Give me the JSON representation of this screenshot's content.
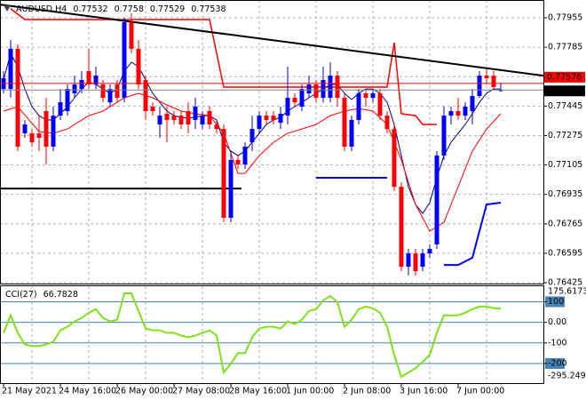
{
  "chart_data": {
    "type": "candlestick",
    "symbol": "AUDUSD,H4",
    "categories": [
      "21 May 2021",
      null,
      null,
      null,
      null,
      null,
      null,
      null,
      "24 May 16:00",
      null,
      null,
      null,
      null,
      null,
      null,
      null,
      "26 May 00:00",
      null,
      null,
      null,
      null,
      null,
      null,
      null,
      "27 May 08:00",
      null,
      null,
      null,
      null,
      null,
      null,
      null,
      "28 May 16:00",
      null,
      null,
      null,
      null,
      null,
      null,
      null,
      "1 Jun 00:00",
      null,
      null,
      null,
      null,
      null,
      null,
      null,
      "2 Jun 08:00",
      null,
      null,
      null,
      null,
      null,
      null,
      null,
      "3 Jun 16:00",
      null,
      null,
      null,
      null,
      null,
      null,
      null,
      "7 Jun 00:00",
      null,
      null,
      null,
      null,
      null,
      null
    ],
    "open": [
      0.77544,
      0.77544,
      0.77776,
      0.77288,
      0.77288,
      0.77288,
      0.77416,
      0.77211,
      0.7739,
      0.77416,
      0.77519,
      0.77544,
      0.77647,
      0.7757,
      0.7757,
      0.77467,
      0.7757,
      0.77493,
      0.7793,
      0.77776,
      0.77596,
      0.77442,
      0.77339,
      0.77401,
      0.7739,
      0.7739,
      0.77416,
      0.77365,
      0.77339,
      0.77416,
      0.77339,
      0.77313,
      0.768,
      0.77134,
      0.77108,
      0.77236,
      0.77313,
      0.7739,
      0.7739,
      0.77349,
      0.7739,
      0.77493,
      0.77442,
      0.77519,
      0.7757,
      0.77493,
      0.77493,
      0.77621,
      0.77493,
      0.77211,
      0.77365,
      0.77519,
      0.77493,
      0.77519,
      0.7739,
      0.77313,
      0.76979,
      0.76517,
      0.76594,
      0.76517,
      0.76594,
      0.76646,
      0.77159,
      0.7739,
      0.77416,
      0.7739,
      0.77416,
      0.77503,
      0.77621,
      0.77621,
      0.77532
    ],
    "high": [
      0.77647,
      0.77827,
      0.77801,
      0.77365,
      0.77313,
      0.7739,
      0.77493,
      0.77442,
      0.77544,
      0.7757,
      0.77621,
      0.77647,
      0.77776,
      0.77673,
      0.77596,
      0.7757,
      0.77596,
      0.77955,
      0.77981,
      0.77827,
      0.77621,
      0.77467,
      0.77442,
      0.77442,
      0.77416,
      0.77416,
      0.77467,
      0.77493,
      0.77416,
      0.77442,
      0.77365,
      0.77339,
      0.77185,
      0.77159,
      0.77236,
      0.7739,
      0.77416,
      0.77416,
      0.77416,
      0.77442,
      0.77673,
      0.77519,
      0.7757,
      0.77621,
      0.77596,
      0.77673,
      0.77698,
      0.77647,
      0.77519,
      0.7739,
      0.77544,
      0.77544,
      0.77544,
      0.77544,
      0.77416,
      0.77339,
      0.77005,
      0.7662,
      0.7662,
      0.7662,
      0.76646,
      0.77185,
      0.77442,
      0.77442,
      0.77493,
      0.77467,
      0.77544,
      0.77647,
      0.77657,
      0.77647,
      0.7758
    ],
    "low": [
      0.77519,
      0.77493,
      0.77185,
      0.77262,
      0.77211,
      0.77185,
      0.77108,
      0.77185,
      0.77365,
      0.7739,
      0.77493,
      0.77519,
      0.77544,
      0.77544,
      0.77467,
      0.77442,
      0.77467,
      0.77467,
      0.7775,
      0.77544,
      0.77365,
      0.7739,
      0.77262,
      0.77236,
      0.77339,
      0.77313,
      0.77288,
      0.77313,
      0.77313,
      0.77313,
      0.77288,
      0.76774,
      0.76774,
      0.77082,
      0.77082,
      0.77185,
      0.77288,
      0.77339,
      0.77339,
      0.77313,
      0.77339,
      0.77442,
      0.77416,
      0.77493,
      0.77467,
      0.77467,
      0.77467,
      0.77442,
      0.77185,
      0.77185,
      0.77339,
      0.77442,
      0.77467,
      0.77365,
      0.77288,
      0.76954,
      0.76492,
      0.76466,
      0.76466,
      0.76492,
      0.76569,
      0.7662,
      0.77134,
      0.77339,
      0.77365,
      0.77365,
      0.77339,
      0.77493,
      0.7757,
      0.77544,
      0.77529
    ],
    "close": [
      0.77606,
      0.77776,
      0.77211,
      0.77339,
      0.77236,
      0.77262,
      0.77211,
      0.7739,
      0.77467,
      0.77544,
      0.7757,
      0.77596,
      0.7757,
      0.77621,
      0.77493,
      0.77544,
      0.77493,
      0.7793,
      0.77776,
      0.7757,
      0.77416,
      0.77416,
      0.7739,
      0.77365,
      0.77365,
      0.77339,
      0.77339,
      0.77442,
      0.7739,
      0.77339,
      0.77313,
      0.768,
      0.77134,
      0.77108,
      0.77211,
      0.77313,
      0.7739,
      0.77365,
      0.77365,
      0.77401,
      0.77493,
      0.77467,
      0.77544,
      0.7757,
      0.77493,
      0.77596,
      0.77621,
      0.77493,
      0.77211,
      0.77365,
      0.77519,
      0.77493,
      0.77519,
      0.7739,
      0.77313,
      0.76979,
      0.76517,
      0.76594,
      0.76492,
      0.76594,
      0.7662,
      0.77159,
      0.7739,
      0.77416,
      0.7739,
      0.77442,
      0.77503,
      0.77621,
      0.77606,
      0.77555,
      0.77538
    ],
    "up_color": "#0000ff",
    "down_color": "#ff0000",
    "ylim": [
      0.76425,
      0.78058
    ],
    "yticks": [
      0.77955,
      0.77785,
      0.77615,
      0.77445,
      0.77275,
      0.77105,
      0.76935,
      0.76765,
      0.76595,
      0.76425
    ],
    "grid": true,
    "overlays": [
      {
        "color": "#000080",
        "width": 1,
        "values": [
          0.77596,
          0.7775,
          0.77673,
          0.77544,
          0.77442,
          0.7739,
          0.77365,
          0.77365,
          0.77401,
          0.77442,
          0.77493,
          0.77544,
          0.77585,
          0.7757,
          0.77544,
          0.77519,
          0.77544,
          0.77647,
          0.77698,
          0.77673,
          0.77596,
          0.77519,
          0.77467,
          0.77416,
          0.7739,
          0.7738,
          0.77375,
          0.7738,
          0.7739,
          0.7739,
          0.77365,
          0.77236,
          0.77185,
          0.77159,
          0.77185,
          0.77236,
          0.77288,
          0.77339,
          0.77365,
          0.7738,
          0.77416,
          0.77442,
          0.77467,
          0.77493,
          0.77519,
          0.77544,
          0.7757,
          0.7757,
          0.77519,
          0.77483,
          0.77519,
          0.77544,
          0.77544,
          0.77519,
          0.77467,
          0.77339,
          0.77159,
          0.76979,
          0.76877,
          0.76825,
          0.76887,
          0.77031,
          0.77159,
          0.77236,
          0.77288,
          0.77339,
          0.77401,
          0.77467,
          0.77519,
          0.77544,
          0.77544
        ]
      },
      {
        "color": "#ff0000",
        "width": 1,
        "x": [
          0,
          2,
          5,
          7,
          9,
          12,
          14,
          17,
          19,
          21,
          23,
          25,
          27,
          29,
          31,
          33,
          34,
          36,
          38,
          40,
          42,
          44,
          46,
          48,
          50,
          52,
          54,
          56,
          58,
          60,
          62,
          64,
          66,
          68,
          70
        ],
        "values": [
          0.77416,
          0.77442,
          0.77298,
          0.77288,
          0.77313,
          0.7739,
          0.77416,
          0.77493,
          0.77519,
          0.77493,
          0.77452,
          0.77416,
          0.77401,
          0.7739,
          0.77288,
          0.77056,
          0.77056,
          0.77159,
          0.77236,
          0.77288,
          0.77313,
          0.77339,
          0.7739,
          0.77416,
          0.77431,
          0.77416,
          0.77339,
          0.77134,
          0.76877,
          0.76723,
          0.76774,
          0.76979,
          0.77185,
          0.77313,
          0.77401
        ]
      },
      {
        "color": "#ff0000",
        "width": 1.5,
        "x": [
          1,
          3,
          29,
          31,
          54,
          55,
          56,
          58,
          59,
          61
        ],
        "values": [
          0.78007,
          0.77945,
          0.77945,
          0.77555,
          0.77555,
          0.77811,
          0.77401,
          0.7739,
          0.77339,
          0.77339
        ]
      },
      {
        "color": "#0000ff",
        "width": 2,
        "x": [
          44,
          54,
          55,
          62,
          64,
          66,
          68,
          70
        ],
        "values": [
          0.77031,
          0.77031,
          null,
          0.76527,
          0.76527,
          0.76569,
          0.76877,
          0.76887
        ]
      },
      {
        "color": "#000000",
        "width": 2,
        "x": [
          -0.5,
          76
        ],
        "values": [
          0.78032,
          0.77621
        ]
      },
      {
        "color": "#000000",
        "width": 2,
        "x": [
          -0.5,
          33.5
        ],
        "values": [
          0.76969,
          0.76969
        ]
      }
    ],
    "price_lines": [
      {
        "value": 0.77576,
        "color": "#ff0000"
      },
      {
        "value": 0.77538,
        "color": "#808080"
      }
    ],
    "cci": {
      "name": "CCI(27)",
      "color": "#7fe01e",
      "values": [
        -51.3,
        34.2,
        -51.3,
        -106.8,
        -115.4,
        -115.4,
        -106.8,
        -94.0,
        -38.5,
        -21.4,
        4.3,
        21.4,
        47.0,
        64.1,
        21.4,
        4.3,
        12.8,
        141.0,
        141.0,
        55.6,
        -29.9,
        -38.5,
        -38.5,
        -51.3,
        -51.3,
        -64.1,
        -72.6,
        -64.1,
        -51.3,
        -38.5,
        -64.1,
        -243.6,
        -200.9,
        -149.6,
        -149.6,
        -72.6,
        -29.9,
        -21.4,
        -21.4,
        -29.9,
        4.3,
        -8.5,
        12.8,
        55.6,
        64.1,
        106.8,
        128.2,
        98.3,
        -21.4,
        12.8,
        64.1,
        76.9,
        68.4,
        47.0,
        -21.4,
        -158.1,
        -265.0,
        -243.6,
        -222.2,
        -192.3,
        -158.1,
        -51.3,
        34.2,
        34.2,
        34.2,
        47.0,
        64.1,
        76.9,
        76.9,
        68.4,
        66.7828
      ],
      "ylim": [
        -295.2492,
        175.6173
      ],
      "yticks": [
        100,
        {
          "value": 0,
          "label": "0.00"
        },
        -100,
        -200
      ],
      "level_color": "#4682b4"
    }
  }
}
